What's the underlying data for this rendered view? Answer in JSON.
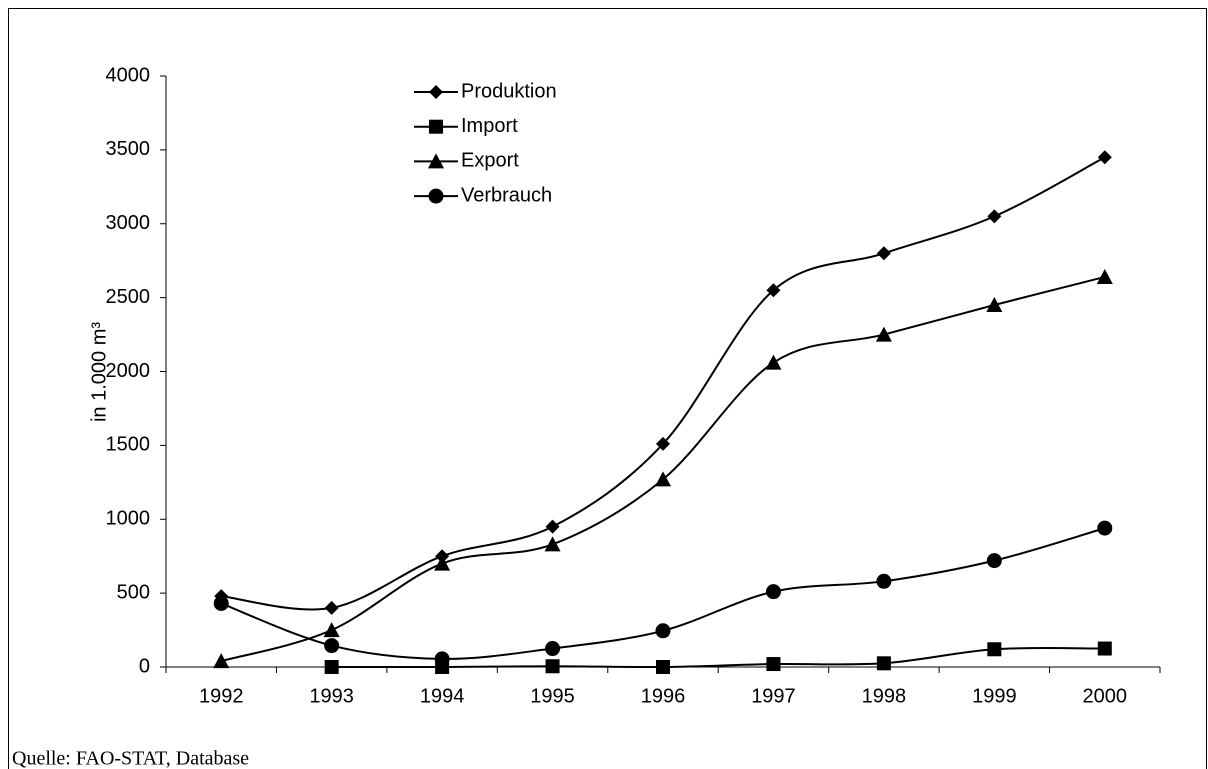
{
  "chart_data": {
    "type": "line",
    "y_label": "in 1.000 m³",
    "source": "Quelle: FAO-STAT, Database",
    "categories": [
      "1992",
      "1993",
      "1994",
      "1995",
      "1996",
      "1997",
      "1998",
      "1999",
      "2000"
    ],
    "series": [
      {
        "name": "Produktion",
        "color": "#000000",
        "marker": "diamond",
        "values": [
          480,
          400,
          750,
          950,
          1510,
          2550,
          2800,
          3050,
          3450
        ]
      },
      {
        "name": "Import",
        "color": "#000000",
        "marker": "square",
        "values": [
          null,
          0,
          0,
          5,
          0,
          20,
          25,
          120,
          125
        ]
      },
      {
        "name": "Export",
        "color": "#000000",
        "marker": "triangle",
        "values": [
          40,
          250,
          700,
          830,
          1270,
          2060,
          2250,
          2450,
          2640
        ]
      },
      {
        "name": "Verbrauch",
        "color": "#000000",
        "marker": "circle",
        "values": [
          430,
          145,
          55,
          125,
          245,
          510,
          580,
          720,
          940
        ]
      }
    ],
    "ylim": [
      0,
      4000
    ],
    "yticks": [
      0,
      500,
      1000,
      1500,
      2000,
      2500,
      3000,
      3500,
      4000
    ],
    "smooth": true,
    "legend": "top-center"
  }
}
